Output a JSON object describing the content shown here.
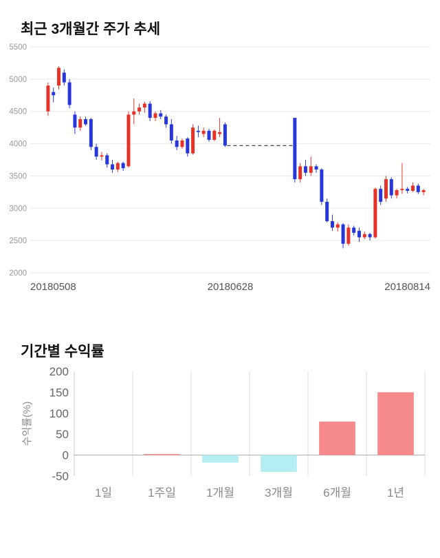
{
  "chart_data": [
    {
      "type": "candlestick",
      "title": "최근 3개월간 주가 추세",
      "ylim": [
        2000,
        5500
      ],
      "yticks": [
        5500,
        5000,
        4500,
        4000,
        3500,
        3000,
        2500,
        2000
      ],
      "xticks": [
        "20180508",
        "20180628",
        "20180814"
      ],
      "grid": "on",
      "colors": {
        "up": "#e63329",
        "down": "#2737d9"
      },
      "gap_dash_level": 3970,
      "candles": [
        [
          4500,
          4950,
          4430,
          4900
        ],
        [
          4800,
          4870,
          4640,
          4750
        ],
        [
          4900,
          5200,
          4840,
          5175
        ],
        [
          5100,
          5150,
          4900,
          4950
        ],
        [
          4950,
          5000,
          4550,
          4600
        ],
        [
          4450,
          4500,
          4150,
          4250
        ],
        [
          4250,
          4420,
          4200,
          4380
        ],
        [
          4380,
          4420,
          4280,
          4300
        ],
        [
          4380,
          4400,
          3900,
          3950
        ],
        [
          3950,
          4000,
          3750,
          3800
        ],
        [
          3800,
          3870,
          3740,
          3820
        ],
        [
          3820,
          3850,
          3630,
          3680
        ],
        [
          3680,
          3750,
          3550,
          3600
        ],
        [
          3600,
          3720,
          3560,
          3700
        ],
        [
          3700,
          3720,
          3580,
          3620
        ],
        [
          3650,
          4500,
          3630,
          4450
        ],
        [
          4450,
          4700,
          4300,
          4500
        ],
        [
          4500,
          4620,
          4450,
          4560
        ],
        [
          4560,
          4650,
          4480,
          4620
        ],
        [
          4620,
          4660,
          4350,
          4400
        ],
        [
          4400,
          4500,
          4350,
          4470
        ],
        [
          4470,
          4520,
          4380,
          4420
        ],
        [
          4420,
          4450,
          4250,
          4300
        ],
        [
          4300,
          4380,
          4000,
          4050
        ],
        [
          4050,
          4120,
          3900,
          3950
        ],
        [
          3950,
          4080,
          3920,
          4050
        ],
        [
          4080,
          4100,
          3800,
          3850
        ],
        [
          3850,
          4300,
          3830,
          4250
        ],
        [
          4200,
          4280,
          4100,
          4180
        ],
        [
          4150,
          4250,
          4100,
          4200
        ],
        [
          4200,
          4230,
          4030,
          4060
        ],
        [
          4060,
          4220,
          4040,
          4200
        ],
        [
          4150,
          4400,
          4100,
          4180
        ],
        [
          4300,
          4330,
          3950,
          3970
        ],
        null,
        null,
        null,
        null,
        null,
        null,
        null,
        null,
        null,
        null,
        null,
        null,
        [
          4400,
          4400,
          3400,
          3450
        ],
        [
          3450,
          3700,
          3400,
          3650
        ],
        [
          3650,
          3750,
          3500,
          3550
        ],
        [
          3550,
          3800,
          3500,
          3650
        ],
        [
          3650,
          3680,
          3550,
          3600
        ],
        [
          3600,
          3620,
          3050,
          3100
        ],
        [
          3100,
          3150,
          2780,
          2800
        ],
        [
          2800,
          2900,
          2650,
          2700
        ],
        [
          2700,
          2780,
          2640,
          2750
        ],
        [
          2750,
          2770,
          2380,
          2450
        ],
        [
          2450,
          2750,
          2420,
          2700
        ],
        [
          2700,
          2730,
          2580,
          2620
        ],
        [
          2650,
          2700,
          2480,
          2550
        ],
        [
          2550,
          2640,
          2520,
          2600
        ],
        [
          2600,
          2620,
          2500,
          2550
        ],
        [
          2550,
          3320,
          2530,
          3300
        ],
        [
          3300,
          3350,
          3050,
          3100
        ],
        [
          3150,
          3500,
          3100,
          3450
        ],
        [
          3450,
          3480,
          3150,
          3200
        ],
        [
          3200,
          3300,
          3150,
          3280
        ],
        [
          3280,
          3700,
          3220,
          3300
        ],
        [
          3300,
          3330,
          3230,
          3270
        ],
        [
          3270,
          3400,
          3250,
          3350
        ],
        [
          3350,
          3380,
          3220,
          3250
        ],
        [
          3250,
          3300,
          3200,
          3280
        ]
      ]
    },
    {
      "type": "bar",
      "title": "기간별 수익률",
      "categories": [
        "1일",
        "1주일",
        "1개월",
        "3개월",
        "6개월",
        "1년"
      ],
      "values": [
        0,
        1,
        -18,
        -40,
        80,
        150
      ],
      "ylabel": "수익률(%)",
      "ylim": [
        -50,
        200
      ],
      "yticks": [
        200,
        150,
        100,
        50,
        0,
        -50
      ],
      "grid": "vertical",
      "legend": "none",
      "colors": {
        "positive": "#f5898c",
        "negative": "#b5eef2"
      }
    }
  ]
}
